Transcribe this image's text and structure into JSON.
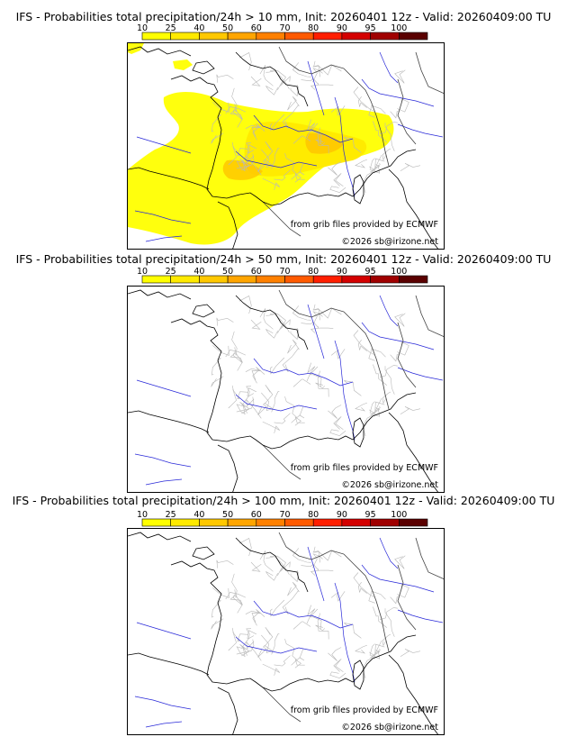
{
  "colorbar": {
    "ticks": [
      "10",
      "25",
      "40",
      "50",
      "60",
      "70",
      "80",
      "90",
      "95",
      "100"
    ],
    "colors": [
      "#ffff00",
      "#ffea00",
      "#ffc800",
      "#ffa500",
      "#ff8000",
      "#ff5a00",
      "#ff1e00",
      "#d40000",
      "#a00000",
      "#5a0000"
    ]
  },
  "panels": [
    {
      "title": "IFS - Probabilities total precipitation/24h > 10 mm, Init: 20260401 12z - Valid: 20260409:00 TU",
      "has_precip": true
    },
    {
      "title": "IFS - Probabilities total precipitation/24h > 50 mm, Init: 20260401 12z - Valid: 20260409:00 TU",
      "has_precip": false
    },
    {
      "title": "IFS - Probabilities total precipitation/24h > 100 mm, Init: 20260401 12z - Valid: 20260409:00 TU",
      "has_precip": false
    }
  ],
  "credits": {
    "source": "from grib files provided by ECMWF",
    "copyright": "©2026 sb@irizone.net"
  }
}
